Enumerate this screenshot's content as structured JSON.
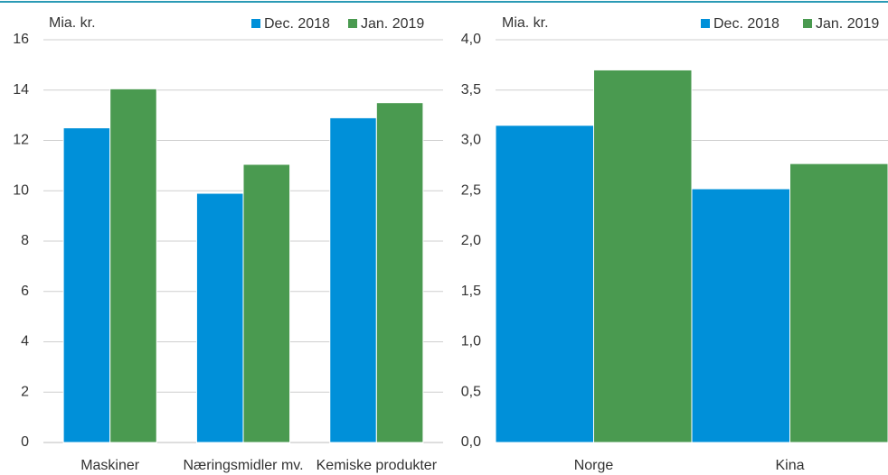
{
  "chart_data": [
    {
      "type": "bar",
      "y_label": "Mia. kr.",
      "categories": [
        "Maskiner",
        "Næringsmidler mv.",
        "Kemiske produkter"
      ],
      "series": [
        {
          "name": "Dec. 2018",
          "color": "#0090d9",
          "values": [
            12.5,
            9.9,
            12.9
          ]
        },
        {
          "name": "Jan. 2019",
          "color": "#4a9a50",
          "values": [
            14.05,
            11.05,
            13.5
          ]
        }
      ],
      "ylim": [
        0,
        16
      ],
      "yticks": [
        0,
        2,
        4,
        6,
        8,
        10,
        12,
        14,
        16
      ],
      "grid": true,
      "legend": "upper right"
    },
    {
      "type": "bar",
      "y_label": "Mia. kr.",
      "categories": [
        "Norge",
        "Kina"
      ],
      "series": [
        {
          "name": "Dec. 2018",
          "color": "#0090d9",
          "values": [
            3.15,
            2.52
          ]
        },
        {
          "name": "Jan. 2019",
          "color": "#4a9a50",
          "values": [
            3.7,
            2.77
          ]
        }
      ],
      "ylim": [
        0,
        4
      ],
      "yticks": [
        {
          "value": 0,
          "label": "0,0"
        },
        {
          "value": 0.5,
          "label": "0,5"
        },
        {
          "value": 1,
          "label": "1,0"
        },
        {
          "value": 1.5,
          "label": "1,5"
        },
        {
          "value": 2,
          "label": "2,0"
        },
        {
          "value": 2.5,
          "label": "2,5"
        },
        {
          "value": 3,
          "label": "3,0"
        },
        {
          "value": 3.5,
          "label": "3,5"
        },
        {
          "value": 4,
          "label": "4,0"
        }
      ],
      "grid": true,
      "legend": "upper right"
    }
  ]
}
